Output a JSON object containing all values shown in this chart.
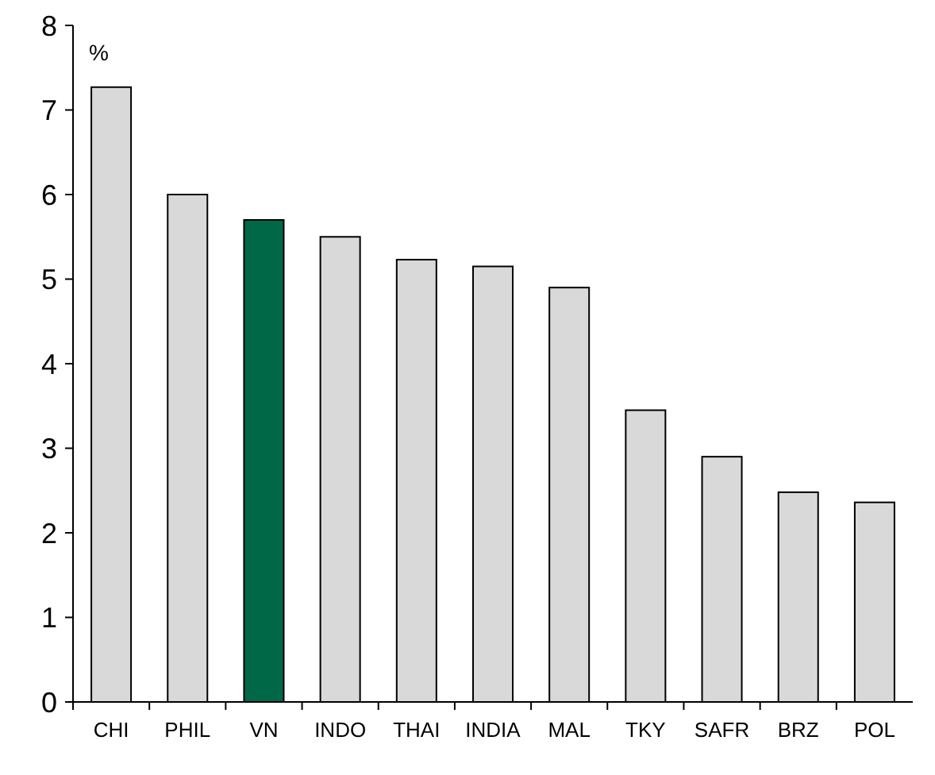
{
  "chart_data": {
    "type": "bar",
    "ylabel": "%",
    "categories": [
      "CHI",
      "PHIL",
      "VN",
      "INDO",
      "THAI",
      "INDIA",
      "MAL",
      "TKY",
      "SAFR",
      "BRZ",
      "POL"
    ],
    "values": [
      7.27,
      6.0,
      5.7,
      5.5,
      5.23,
      5.15,
      4.9,
      3.45,
      2.9,
      2.48,
      2.36
    ],
    "colors": [
      "#d9d9d9",
      "#d9d9d9",
      "#006847",
      "#d9d9d9",
      "#d9d9d9",
      "#d9d9d9",
      "#d9d9d9",
      "#d9d9d9",
      "#d9d9d9",
      "#d9d9d9",
      "#d9d9d9"
    ],
    "ylim": [
      0,
      8
    ],
    "yticks": [
      0,
      1,
      2,
      3,
      4,
      5,
      6,
      7,
      8
    ],
    "grid": false
  }
}
